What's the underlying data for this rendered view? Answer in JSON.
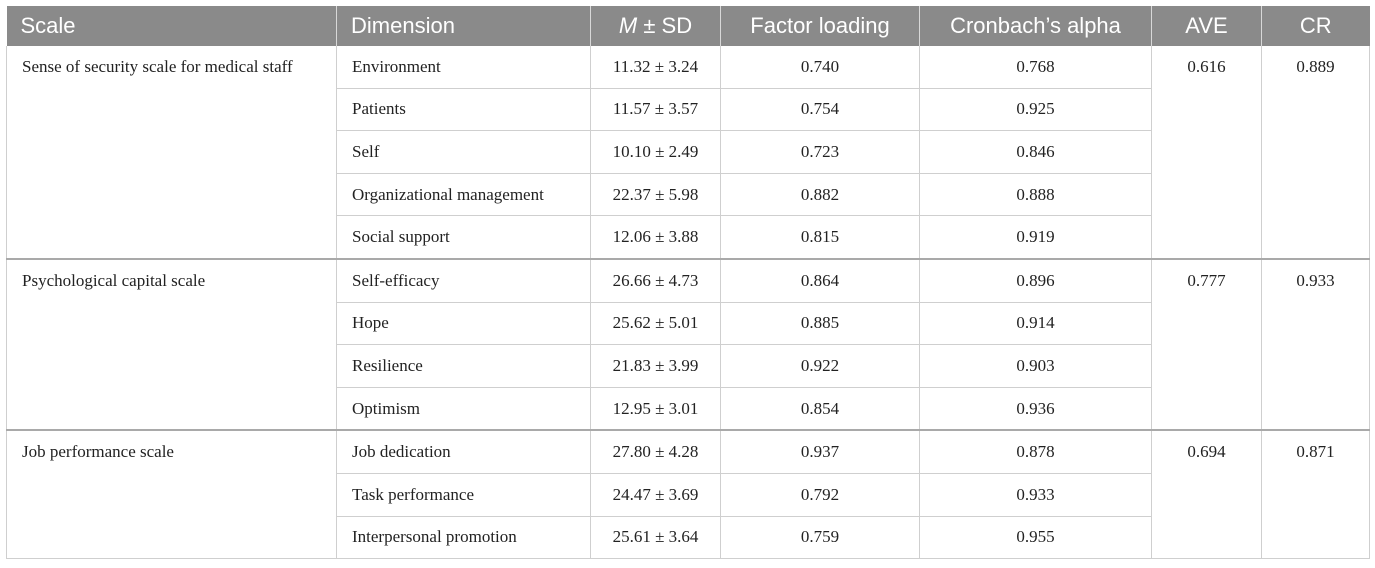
{
  "headers": {
    "scale": "Scale",
    "dimension": "Dimension",
    "m_italic": "M",
    "pm_sd": " ± SD",
    "factor_loading": "Factor loading",
    "cronbach": "Cronbach’s alpha",
    "ave": "AVE",
    "cr": "CR"
  },
  "groups": [
    {
      "scale": "Sense of security scale for medical staff",
      "ave": "0.616",
      "cr": "0.889",
      "rows": [
        {
          "dimension": "Environment",
          "msd": "11.32 ± 3.24",
          "loading": "0.740",
          "alpha": "0.768"
        },
        {
          "dimension": "Patients",
          "msd": "11.57 ± 3.57",
          "loading": "0.754",
          "alpha": "0.925"
        },
        {
          "dimension": "Self",
          "msd": "10.10 ± 2.49",
          "loading": "0.723",
          "alpha": "0.846"
        },
        {
          "dimension": "Organizational management",
          "msd": "22.37 ± 5.98",
          "loading": "0.882",
          "alpha": "0.888"
        },
        {
          "dimension": "Social support",
          "msd": "12.06 ± 3.88",
          "loading": "0.815",
          "alpha": "0.919"
        }
      ]
    },
    {
      "scale": "Psychological capital scale",
      "ave": "0.777",
      "cr": "0.933",
      "rows": [
        {
          "dimension": "Self-efficacy",
          "msd": "26.66 ± 4.73",
          "loading": "0.864",
          "alpha": "0.896"
        },
        {
          "dimension": "Hope",
          "msd": "25.62 ± 5.01",
          "loading": "0.885",
          "alpha": "0.914"
        },
        {
          "dimension": "Resilience",
          "msd": "21.83 ± 3.99",
          "loading": "0.922",
          "alpha": "0.903"
        },
        {
          "dimension": "Optimism",
          "msd": "12.95 ± 3.01",
          "loading": "0.854",
          "alpha": "0.936"
        }
      ]
    },
    {
      "scale": "Job performance scale",
      "ave": "0.694",
      "cr": "0.871",
      "rows": [
        {
          "dimension": "Job dedication",
          "msd": "27.80 ± 4.28",
          "loading": "0.937",
          "alpha": "0.878"
        },
        {
          "dimension": "Task performance",
          "msd": "24.47 ± 3.69",
          "loading": "0.792",
          "alpha": "0.933"
        },
        {
          "dimension": "Interpersonal promotion",
          "msd": "25.61 ± 3.64",
          "loading": "0.759",
          "alpha": "0.955"
        }
      ]
    }
  ]
}
